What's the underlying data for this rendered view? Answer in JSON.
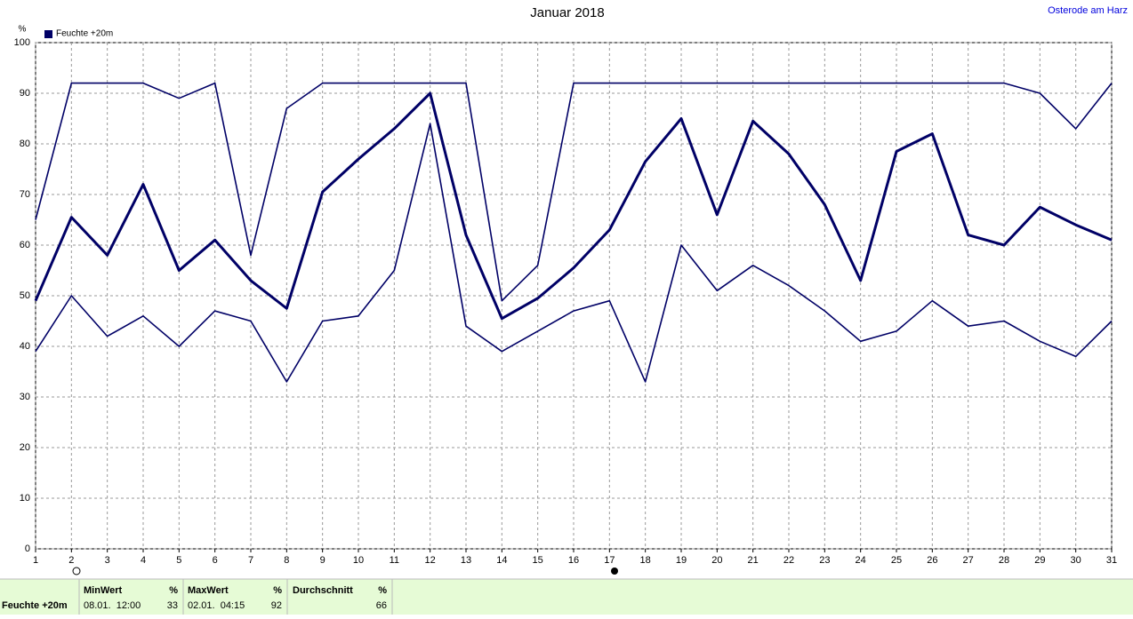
{
  "chart_data": {
    "type": "line",
    "title": "Januar 2018",
    "location": "Osterode am Harz",
    "y_unit": "%",
    "x": [
      1,
      2,
      3,
      4,
      5,
      6,
      7,
      8,
      9,
      10,
      11,
      12,
      13,
      14,
      15,
      16,
      17,
      18,
      19,
      20,
      21,
      22,
      23,
      24,
      25,
      26,
      27,
      28,
      29,
      30,
      31
    ],
    "xlim": [
      1,
      31
    ],
    "xticks": [
      1,
      2,
      3,
      4,
      5,
      6,
      7,
      8,
      9,
      10,
      11,
      12,
      13,
      14,
      15,
      16,
      17,
      18,
      19,
      20,
      21,
      22,
      23,
      24,
      25,
      26,
      27,
      28,
      29,
      30,
      31
    ],
    "ylim": [
      0,
      100
    ],
    "yticks": [
      0,
      10,
      20,
      30,
      40,
      50,
      60,
      70,
      80,
      90,
      100
    ],
    "grid": true,
    "series": [
      {
        "color": "#000066",
        "values": [
          65,
          92,
          92,
          92,
          89,
          92,
          58,
          87,
          92,
          92,
          92,
          92,
          92,
          49,
          56,
          92,
          92,
          92,
          92,
          92,
          92,
          92,
          92,
          92,
          92,
          92,
          92,
          92,
          90,
          83,
          92
        ]
      },
      {
        "name": "Feuchte +20m",
        "color": "#000066",
        "values": [
          49,
          65.5,
          58,
          72,
          55,
          61,
          53,
          47.5,
          70.5,
          77,
          83,
          90,
          62,
          45.5,
          49.5,
          55.5,
          63,
          76.5,
          85,
          66,
          84.5,
          78,
          68,
          53,
          78.5,
          82,
          62,
          60,
          67.5,
          64,
          61
        ]
      },
      {
        "color": "#000066",
        "values": [
          39,
          50,
          42,
          46,
          40,
          47,
          45,
          33,
          45,
          46,
          55,
          84,
          44,
          39,
          43,
          47,
          49,
          33,
          60,
          51,
          56,
          52,
          47,
          41,
          43,
          49,
          44,
          45,
          41,
          38,
          45
        ]
      }
    ]
  },
  "summary": {
    "label": "Feuchte +20m",
    "columns": [
      {
        "title": "MinWert",
        "unit": "%",
        "time": "08.01.  12:00",
        "value": "33"
      },
      {
        "title": "MaxWert",
        "unit": "%",
        "time": "02.01.  04:15",
        "value": "92"
      },
      {
        "title": "Durchschnitt",
        "unit": "%",
        "time": "",
        "value": "66"
      }
    ]
  }
}
